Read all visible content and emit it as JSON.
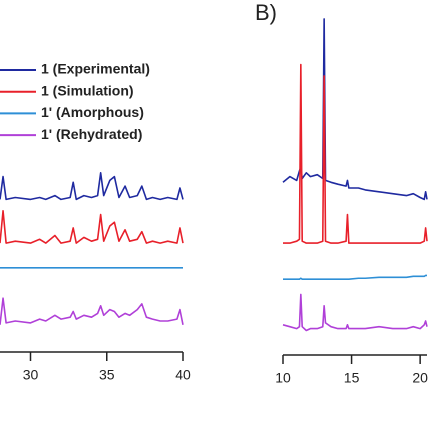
{
  "chart_data": [
    {
      "type": "line",
      "x": [
        28,
        28.2,
        28.4,
        29,
        30,
        30.6,
        31,
        31.6,
        32,
        32.6,
        32.8,
        33,
        33.5,
        34,
        34.4,
        34.6,
        34.8,
        35.2,
        35.5,
        35.8,
        36.2,
        36.5,
        37,
        37.3,
        37.6,
        38,
        38.5,
        39,
        39.6,
        39.8,
        40
      ],
      "xlim": [
        28,
        40
      ],
      "xticks": [
        30,
        35,
        40
      ],
      "ylim": [
        0,
        17
      ],
      "legend": "top",
      "series": [
        {
          "name": "1 (Experimental)",
          "color": "#1f2aa0",
          "values": [
            7.4,
            8.6,
            7.4,
            7.5,
            7.4,
            7.5,
            7.4,
            7.6,
            7.4,
            7.5,
            8.3,
            7.4,
            7.6,
            7.5,
            7.6,
            8.8,
            7.6,
            8.4,
            8.6,
            7.5,
            8.1,
            7.5,
            7.6,
            8.1,
            7.4,
            7.5,
            7.4,
            7.5,
            7.4,
            8.0,
            7.4
          ]
        },
        {
          "name": "1 (Simulation)",
          "color": "#e8202a",
          "values": [
            5.1,
            6.8,
            5.1,
            5.2,
            5.1,
            5.3,
            5.1,
            5.5,
            5.1,
            5.2,
            5.9,
            5.1,
            5.4,
            5.2,
            5.3,
            6.6,
            5.2,
            6.0,
            6.2,
            5.2,
            5.8,
            5.2,
            5.3,
            5.7,
            5.1,
            5.2,
            5.1,
            5.2,
            5.1,
            5.9,
            5.1
          ]
        },
        {
          "name": "1' (Amorphous)",
          "color": "#2e8fd6",
          "values": [
            3.8,
            3.8,
            3.8,
            3.8,
            3.8,
            3.8,
            3.8,
            3.8,
            3.8,
            3.8,
            3.8,
            3.8,
            3.8,
            3.8,
            3.8,
            3.8,
            3.8,
            3.8,
            3.8,
            3.8,
            3.8,
            3.8,
            3.8,
            3.8,
            3.8,
            3.8,
            3.8,
            3.8,
            3.8,
            3.8,
            3.8
          ]
        },
        {
          "name": "1' (Rehydrated)",
          "color": "#b040d8",
          "values": [
            0.8,
            2.2,
            0.9,
            1.0,
            0.9,
            1.1,
            1.0,
            1.3,
            1.1,
            1.2,
            1.5,
            1.1,
            1.3,
            1.2,
            1.4,
            1.8,
            1.3,
            1.6,
            1.5,
            1.2,
            1.4,
            1.3,
            1.6,
            1.9,
            1.2,
            1.1,
            1.0,
            1.0,
            1.1,
            1.6,
            0.8
          ]
        }
      ]
    },
    {
      "type": "line",
      "panel_label": "B)",
      "x": [
        10,
        10.5,
        11,
        11.2,
        11.3,
        11.4,
        11.7,
        12,
        12.5,
        12.9,
        13,
        13.1,
        13.5,
        14,
        14.6,
        14.7,
        14.8,
        15.5,
        16,
        17,
        18,
        19,
        19.5,
        20,
        20.3,
        20.4,
        20.5
      ],
      "xlim": [
        10,
        20.5
      ],
      "xticks": [
        10,
        15,
        20
      ],
      "ylim": [
        0,
        17
      ],
      "series": [
        {
          "color": "#1f2aa0",
          "values": [
            8.3,
            8.6,
            8.4,
            8.9,
            9.1,
            8.5,
            8.8,
            8.6,
            8.7,
            8.5,
            16.9,
            8.4,
            8.3,
            8.2,
            8.1,
            8.4,
            8.0,
            8.0,
            7.9,
            7.8,
            7.7,
            7.6,
            7.7,
            7.5,
            7.4,
            7.8,
            7.4
          ]
        },
        {
          "color": "#e8202a",
          "values": [
            5.1,
            5.1,
            5.2,
            5.3,
            14.5,
            5.2,
            5.1,
            5.1,
            5.1,
            5.2,
            13.9,
            5.2,
            5.1,
            5.1,
            5.2,
            6.6,
            5.1,
            5.1,
            5.1,
            5.1,
            5.1,
            5.1,
            5.1,
            5.1,
            5.2,
            5.9,
            5.2
          ]
        },
        {
          "color": "#2e8fd6",
          "values": [
            3.2,
            3.2,
            3.2,
            3.2,
            3.25,
            3.2,
            3.2,
            3.2,
            3.2,
            3.2,
            3.2,
            3.2,
            3.2,
            3.2,
            3.2,
            3.2,
            3.2,
            3.25,
            3.25,
            3.3,
            3.3,
            3.3,
            3.35,
            3.35,
            3.35,
            3.4,
            3.4
          ]
        },
        {
          "color": "#b040d8",
          "values": [
            0.8,
            0.7,
            0.6,
            0.7,
            2.4,
            0.7,
            0.5,
            0.6,
            0.6,
            0.7,
            1.8,
            0.9,
            0.7,
            0.6,
            0.6,
            0.8,
            0.6,
            0.6,
            0.6,
            0.7,
            0.6,
            0.6,
            0.7,
            0.6,
            0.8,
            1.0,
            0.7
          ]
        }
      ]
    }
  ]
}
